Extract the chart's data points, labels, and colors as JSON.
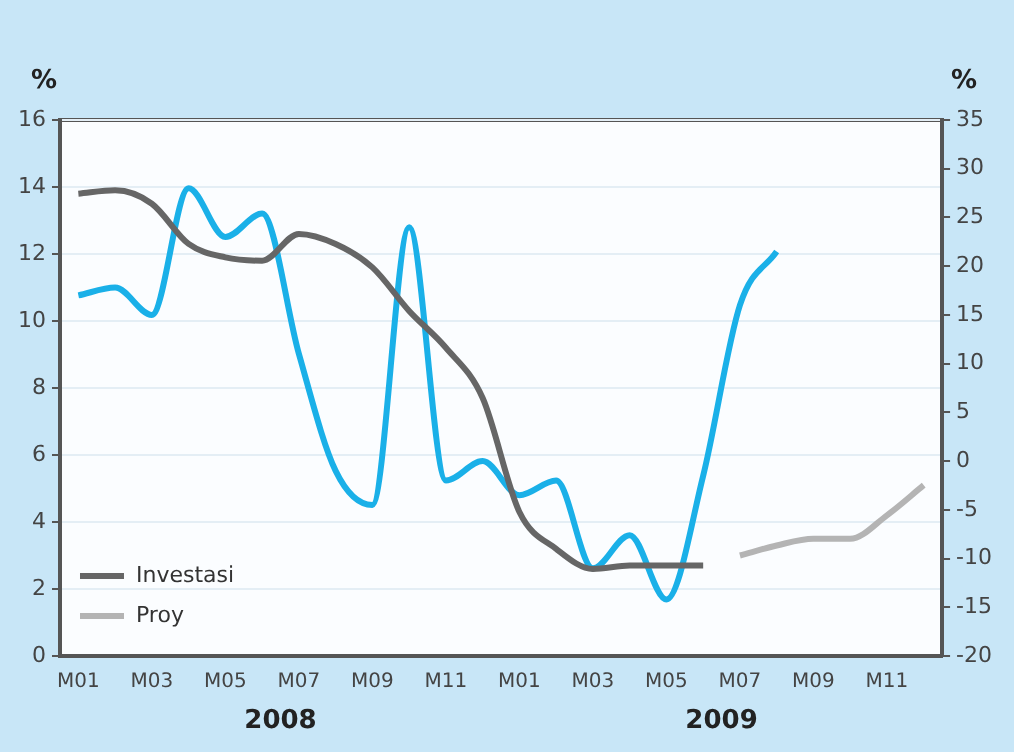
{
  "chart_data": {
    "type": "line",
    "ylabel": "%",
    "y2label": "%",
    "categories": [
      "M01",
      null,
      "M03",
      null,
      "M05",
      null,
      "M07",
      null,
      "M09",
      null,
      "M11",
      null,
      "M01",
      null,
      "M03",
      null,
      "M05",
      null,
      "M07",
      null,
      "M09",
      null,
      "M11",
      null
    ],
    "series": [
      {
        "name": "Investasi",
        "color": "#666666",
        "values": [
          13.8,
          13.9,
          13.5,
          12.3,
          11.9,
          11.8,
          12.6,
          12.3,
          11.6,
          10.3,
          9.2,
          7.7,
          4.3,
          3.2,
          2.6,
          2.7,
          2.7,
          2.7,
          null,
          null,
          null,
          null,
          null,
          null
        ]
      },
      {
        "name": "Proy",
        "color": "#b4b4b4",
        "values": [
          null,
          null,
          null,
          null,
          null,
          null,
          null,
          null,
          null,
          null,
          null,
          null,
          null,
          null,
          null,
          null,
          null,
          null,
          3.0,
          3.3,
          3.5,
          3.5,
          4.2,
          5.1
        ]
      },
      {
        "color": "#1ab0e8",
        "axis": "y2",
        "values": [
          17,
          17.8,
          15,
          28,
          23,
          25.4,
          11,
          -1,
          -4.5,
          24,
          -2,
          0,
          -3.5,
          -2,
          -11,
          -7.6,
          -14.2,
          -1.5,
          16,
          21.5,
          null,
          null,
          null,
          null
        ]
      }
    ],
    "ylim": [
      0,
      16
    ],
    "yticks": [
      0,
      2,
      4,
      6,
      8,
      10,
      12,
      14,
      16
    ],
    "y2lim": [
      -20,
      35
    ],
    "y2ticks": [
      -20,
      -15,
      -10,
      -5,
      0,
      5,
      10,
      15,
      20,
      25,
      30,
      35
    ],
    "grid": "y",
    "legend": "bottom left",
    "marker": "none",
    "line_style": "solid",
    "annotations": [
      "2008",
      "2009"
    ]
  }
}
